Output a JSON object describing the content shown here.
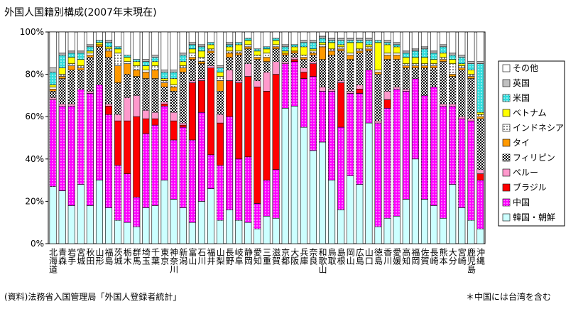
{
  "chart_data": {
    "type": "stacked_bar",
    "title": "外国人国籍別構成(2007年末現在)",
    "source": "(資料)法務省入国管理局「外国人登録者統計」",
    "note": "＊中国には台湾を含む",
    "categories": [
      "北海道",
      "青森",
      "岩手",
      "宮城",
      "秋田",
      "山形",
      "福島",
      "茨城",
      "栃木",
      "群馬",
      "埼玉",
      "千葉",
      "東京",
      "神奈川",
      "新潟",
      "富山",
      "石川",
      "福井",
      "山梨",
      "長野",
      "岐阜",
      "静岡",
      "愛知",
      "三重",
      "滋賀",
      "京都",
      "大阪",
      "兵庫",
      "奈良",
      "和歌山",
      "鳥取",
      "島根",
      "岡山",
      "広島",
      "山口",
      "徳島",
      "香川",
      "愛媛",
      "高知",
      "福岡",
      "佐賀",
      "長崎",
      "熊本",
      "大分",
      "宮崎",
      "鹿児島",
      "沖縄"
    ],
    "ylim": [
      0,
      100
    ],
    "yticks": [
      {
        "value": 0,
        "label": "0%"
      },
      {
        "value": 20,
        "label": "20%"
      },
      {
        "value": 40,
        "label": "40%"
      },
      {
        "value": 60,
        "label": "60%"
      },
      {
        "value": 80,
        "label": "80%"
      },
      {
        "value": 100,
        "label": "100%"
      }
    ],
    "grid": false,
    "legend": "right",
    "series": [
      {
        "name": "韓国・朝鮮",
        "color": "#ccffff",
        "values": [
          27,
          25,
          18,
          28,
          18,
          30,
          17,
          11,
          10,
          8,
          17,
          18,
          30,
          21,
          17,
          10,
          20,
          26,
          11,
          16,
          11,
          10,
          7,
          13,
          12,
          64,
          65,
          55,
          44,
          48,
          30,
          16,
          32,
          28,
          57,
          8,
          12,
          13,
          21,
          40,
          21,
          18,
          12,
          28,
          17,
          11,
          7
        ]
      },
      {
        "name": "中国",
        "color": "#ff00ff",
        "pattern": "dots-white",
        "values": [
          41,
          40,
          47,
          45,
          53,
          45,
          44,
          26,
          23,
          14,
          35,
          38,
          35,
          28,
          38,
          39,
          42,
          16,
          26,
          44,
          29,
          31,
          12,
          17,
          23,
          21,
          21,
          23,
          35,
          24,
          42,
          39,
          39,
          43,
          25,
          49,
          52,
          60,
          51,
          38,
          49,
          56,
          53,
          37,
          42,
          47,
          23
        ]
      },
      {
        "name": "ブラジル",
        "color": "#ff0000",
        "values": [
          0,
          0,
          0,
          0,
          0,
          0,
          4,
          21,
          25,
          38,
          7,
          3,
          1,
          9,
          1,
          27,
          15,
          41,
          20,
          17,
          36,
          38,
          55,
          42,
          45,
          0,
          1,
          3,
          6,
          0,
          0,
          21,
          0,
          2,
          0,
          0,
          4,
          0,
          0,
          0,
          0,
          0,
          0,
          0,
          0,
          0,
          3
        ]
      },
      {
        "name": "ペルー",
        "color": "#ff99cc",
        "values": [
          1,
          1,
          1,
          0,
          1,
          0,
          1,
          3,
          11,
          10,
          4,
          3,
          1,
          4,
          1,
          1,
          1,
          1,
          4,
          5,
          1,
          6,
          3,
          9,
          6,
          1,
          1,
          2,
          1,
          2,
          1,
          1,
          1,
          2,
          0,
          1,
          4,
          1,
          1,
          0,
          0,
          0,
          1,
          1,
          1,
          1,
          2
        ]
      },
      {
        "name": "フィリピン",
        "color": "#808080",
        "pattern": "checker",
        "values": [
          3,
          12,
          16,
          9,
          16,
          18,
          22,
          15,
          11,
          9,
          15,
          16,
          7,
          10,
          24,
          10,
          7,
          6,
          11,
          6,
          12,
          7,
          10,
          5,
          6,
          3,
          2,
          4,
          3,
          13,
          16,
          14,
          15,
          15,
          9,
          22,
          15,
          13,
          10,
          5,
          13,
          9,
          20,
          13,
          22,
          19,
          24
        ]
      },
      {
        "name": "タイ",
        "color": "#ff9900",
        "values": [
          1,
          1,
          2,
          1,
          1,
          1,
          3,
          8,
          5,
          3,
          3,
          4,
          2,
          2,
          2,
          1,
          1,
          1,
          5,
          2,
          1,
          1,
          1,
          2,
          1,
          1,
          1,
          1,
          1,
          6,
          2,
          1,
          2,
          1,
          1,
          1,
          2,
          2,
          1,
          1,
          1,
          1,
          1,
          1,
          1,
          1,
          1
        ]
      },
      {
        "name": "インドネシア",
        "color": "#ffffff",
        "pattern": "dots-black",
        "values": [
          1,
          1,
          1,
          1,
          1,
          0,
          1,
          6,
          1,
          2,
          1,
          2,
          1,
          1,
          1,
          2,
          2,
          1,
          2,
          1,
          1,
          1,
          1,
          2,
          1,
          0,
          0,
          1,
          1,
          1,
          1,
          1,
          1,
          1,
          1,
          1,
          1,
          1,
          1,
          1,
          1,
          1,
          1,
          5,
          1,
          1,
          1
        ]
      },
      {
        "name": "ベトナム",
        "color": "#ffff00",
        "values": [
          1,
          3,
          3,
          3,
          1,
          1,
          1,
          2,
          2,
          2,
          2,
          2,
          1,
          3,
          2,
          2,
          3,
          2,
          2,
          2,
          3,
          2,
          2,
          2,
          2,
          1,
          2,
          4,
          1,
          1,
          3,
          1,
          5,
          3,
          1,
          13,
          4,
          3,
          3,
          3,
          3,
          2,
          2,
          2,
          1,
          2,
          1
        ]
      },
      {
        "name": "米国",
        "color": "#33dddd",
        "pattern": "dots-white",
        "values": [
          6,
          6,
          2,
          3,
          2,
          1,
          2,
          1,
          1,
          1,
          2,
          2,
          3,
          3,
          3,
          2,
          2,
          1,
          2,
          1,
          1,
          1,
          1,
          1,
          1,
          2,
          1,
          2,
          3,
          2,
          1,
          2,
          1,
          1,
          2,
          1,
          1,
          1,
          2,
          3,
          4,
          3,
          3,
          2,
          3,
          3,
          23
        ]
      },
      {
        "name": "英国",
        "color": "#c0c0c0",
        "values": [
          2,
          1,
          1,
          1,
          1,
          0,
          1,
          0,
          0,
          0,
          1,
          1,
          1,
          1,
          1,
          1,
          1,
          0,
          1,
          1,
          0,
          0,
          0,
          0,
          0,
          1,
          0,
          1,
          1,
          1,
          1,
          1,
          1,
          1,
          1,
          0,
          1,
          1,
          1,
          1,
          1,
          1,
          1,
          1,
          1,
          1,
          1
        ]
      },
      {
        "name": "その他",
        "color": "#ffffff",
        "values": [
          17,
          10,
          9,
          9,
          6,
          4,
          4,
          7,
          11,
          13,
          13,
          11,
          18,
          18,
          10,
          5,
          6,
          5,
          16,
          5,
          5,
          3,
          8,
          7,
          3,
          6,
          6,
          4,
          4,
          2,
          3,
          3,
          3,
          3,
          3,
          4,
          4,
          5,
          9,
          8,
          7,
          9,
          6,
          10,
          11,
          14,
          14
        ]
      }
    ]
  }
}
